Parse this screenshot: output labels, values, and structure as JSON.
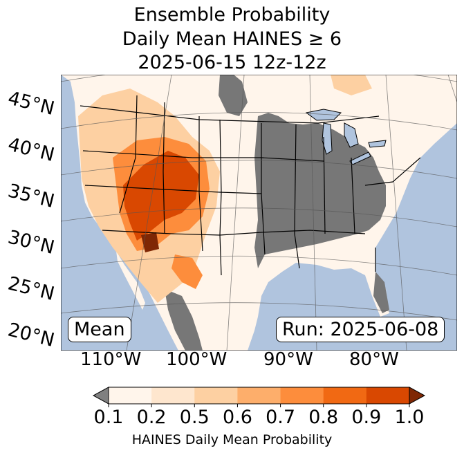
{
  "title": {
    "line1": "Ensemble Probability",
    "line2": "Daily Mean HAINES ≥ 6",
    "line3": "2025-06-15 12z-12z"
  },
  "map": {
    "left_box": "Mean",
    "right_box": "Run: 2025-06-08",
    "lat_labels": [
      "45°N",
      "40°N",
      "35°N",
      "30°N",
      "25°N",
      "20°N"
    ],
    "lon_labels": [
      "110°W",
      "100°W",
      "90°W",
      "80°W"
    ],
    "colors": {
      "ocean": "#b0c4de",
      "missing": "#777777",
      "land": "#fff5eb"
    }
  },
  "colorbar": {
    "ticks": [
      "0.1",
      "0.2",
      "0.5",
      "0.6",
      "0.7",
      "0.8",
      "0.9",
      "1.0"
    ],
    "colors": [
      "#fff5eb",
      "#fee6ce",
      "#fdd0a2",
      "#fdae6b",
      "#fd8d3c",
      "#f16913",
      "#d94801",
      "#7f2704"
    ],
    "under_color": "#808080",
    "label": "HAINES Daily Mean Probability"
  }
}
